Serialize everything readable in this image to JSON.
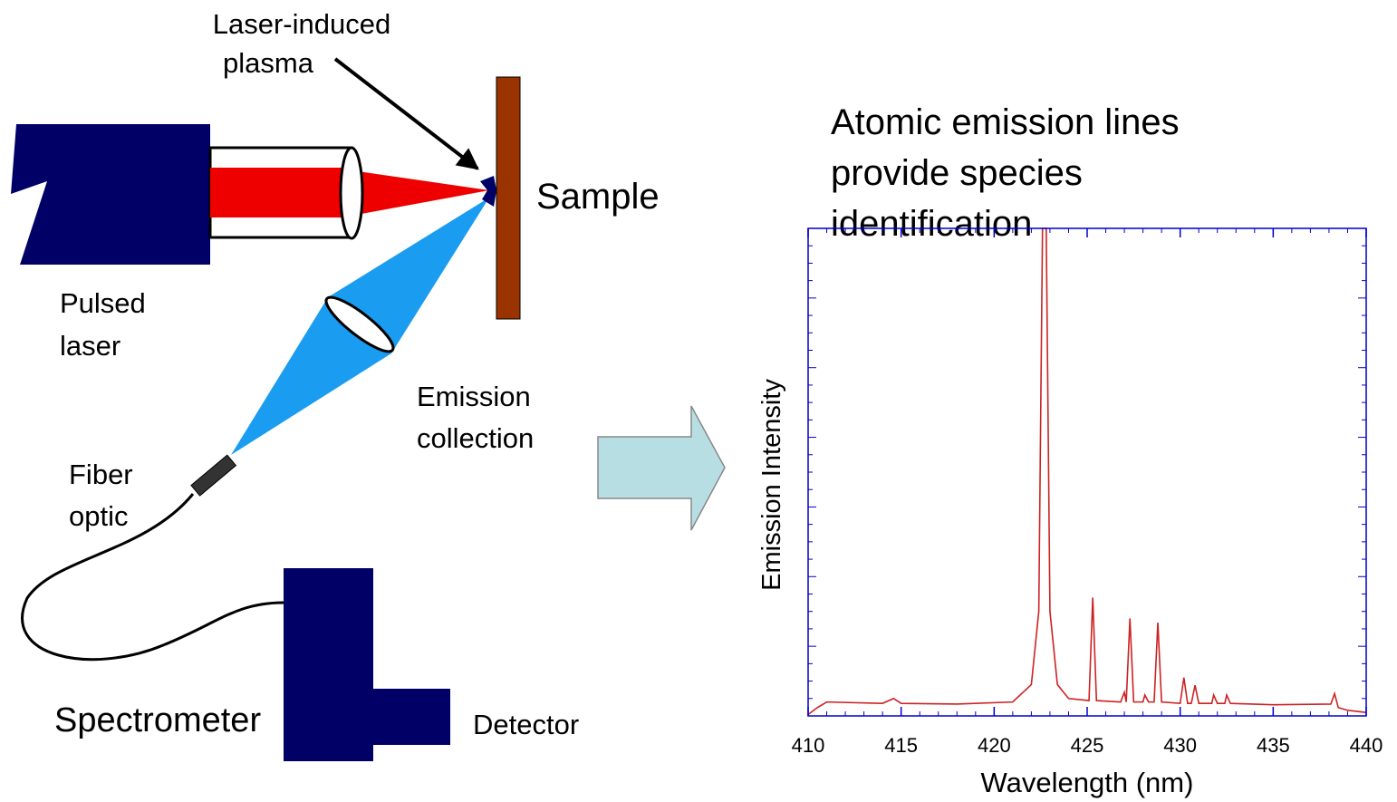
{
  "diagram": {
    "plasma_label": [
      "Laser-induced",
      "plasma"
    ],
    "sample_label": "Sample",
    "laser_label": [
      "Pulsed",
      "laser"
    ],
    "collection_label": [
      "Emission",
      "collection"
    ],
    "fiber_label": [
      "Fiber",
      "optic"
    ],
    "spectrometer_label": "Spectrometer",
    "detector_label": "Detector"
  },
  "chart_data": {
    "type": "line",
    "title": [
      "Atomic emission lines",
      "provide species",
      "identification"
    ],
    "x_label": "Wavelength (nm)",
    "y_label": "Emission Intensity",
    "xlim": [
      410,
      440
    ],
    "xticks": [
      410,
      415,
      420,
      425,
      430,
      435,
      440
    ],
    "ylim": [
      0,
      7
    ],
    "grid": false,
    "series": [
      {
        "color": "#cc2222",
        "x": [
          410,
          410.5,
          411,
          414,
          414.6,
          415,
          418,
          421,
          422,
          422.4,
          422.6,
          422.8,
          423.0,
          423.4,
          424,
          425.1,
          425.3,
          425.5,
          426.8,
          427.0,
          427.1,
          427.3,
          427.5,
          428.0,
          428.1,
          428.3,
          428.6,
          428.8,
          429.0,
          430.0,
          430.2,
          430.4,
          430.6,
          430.8,
          431.0,
          431.7,
          431.8,
          432.0,
          432.4,
          432.5,
          432.7,
          435,
          438.1,
          438.3,
          438.5,
          439,
          440
        ],
        "values": [
          0.02,
          0.12,
          0.2,
          0.18,
          0.25,
          0.18,
          0.17,
          0.2,
          0.45,
          1.5,
          7.0,
          7.0,
          1.5,
          0.45,
          0.25,
          0.22,
          1.7,
          0.22,
          0.2,
          0.34,
          0.2,
          1.4,
          0.2,
          0.2,
          0.3,
          0.2,
          0.2,
          1.34,
          0.2,
          0.18,
          0.55,
          0.18,
          0.18,
          0.44,
          0.18,
          0.18,
          0.3,
          0.18,
          0.18,
          0.3,
          0.18,
          0.16,
          0.17,
          0.32,
          0.12,
          0.08,
          0.05
        ]
      }
    ]
  }
}
